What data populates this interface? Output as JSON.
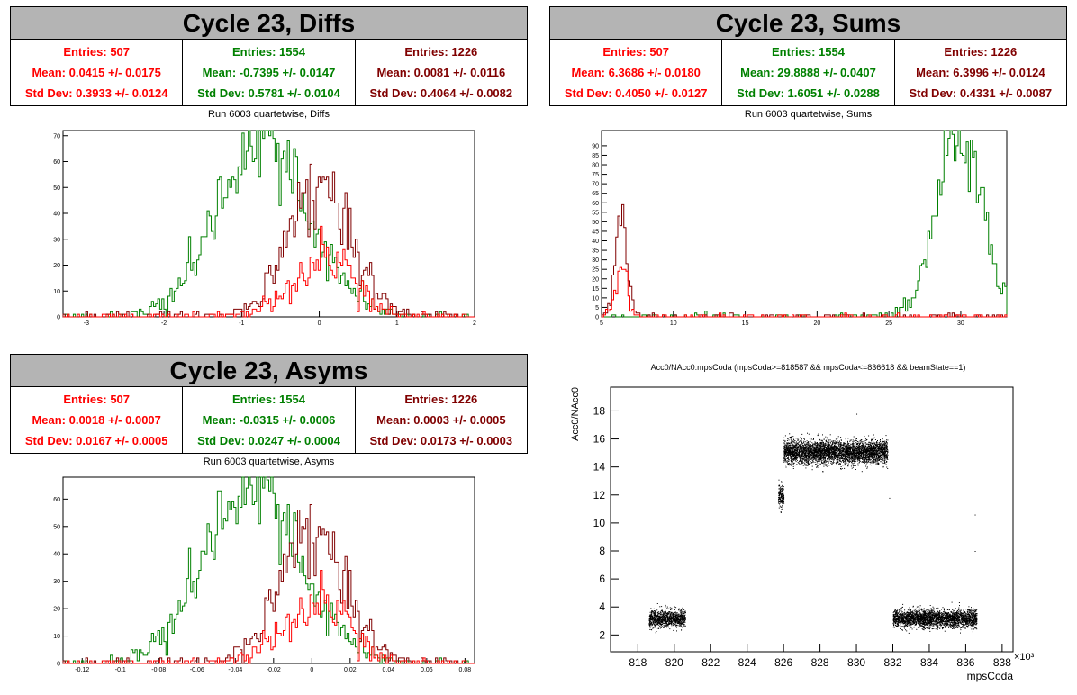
{
  "colors": {
    "c1": "#ff0000",
    "c2": "#008000",
    "c3": "#800000",
    "titlebg": "#b4b4b4"
  },
  "panels": {
    "diffs": {
      "title": "Cycle 23, Diffs",
      "subtitle": "Run 6003 quartetwise, Diffs",
      "stats": [
        {
          "entries": "Entries: 507",
          "mean": "Mean: 0.0415 +/- 0.0175",
          "std": "Std Dev: 0.3933 +/- 0.0124"
        },
        {
          "entries": "Entries: 1554",
          "mean": "Mean: -0.7395 +/- 0.0147",
          "std": "Std Dev: 0.5781 +/- 0.0104"
        },
        {
          "entries": "Entries: 1226",
          "mean": "Mean: 0.0081 +/- 0.0116",
          "std": "Std Dev: 0.4064 +/- 0.0082"
        }
      ]
    },
    "sums": {
      "title": "Cycle 23, Sums",
      "subtitle": "Run 6003 quartetwise, Sums",
      "stats": [
        {
          "entries": "Entries: 507",
          "mean": "Mean: 6.3686 +/- 0.0180",
          "std": "Std Dev: 0.4050 +/- 0.0127"
        },
        {
          "entries": "Entries: 1554",
          "mean": "Mean: 29.8888 +/- 0.0407",
          "std": "Std Dev: 1.6051 +/- 0.0288"
        },
        {
          "entries": "Entries: 1226",
          "mean": "Mean: 6.3996 +/- 0.0124",
          "std": "Std Dev: 0.4331 +/- 0.0087"
        }
      ]
    },
    "asyms": {
      "title": "Cycle 23, Asyms",
      "subtitle": "Run 6003 quartetwise, Asyms",
      "stats": [
        {
          "entries": "Entries: 507",
          "mean": "Mean: 0.0018 +/- 0.0007",
          "std": "Std Dev: 0.0167 +/- 0.0005"
        },
        {
          "entries": "Entries: 1554",
          "mean": "Mean: -0.0315 +/- 0.0006",
          "std": "Std Dev: 0.0247 +/- 0.0004"
        },
        {
          "entries": "Entries: 1226",
          "mean": "Mean: 0.0003 +/- 0.0005",
          "std": "Std Dev: 0.0173 +/- 0.0003"
        }
      ]
    },
    "scatter": {
      "title": "Acc0/NAcc0:mpsCoda (mpsCoda>=818587 && mpsCoda<=836618 && beamState==1)"
    }
  },
  "chart_data": [
    {
      "type": "histogram",
      "name": "diffs",
      "xlim": [
        -3.3,
        2.0
      ],
      "ylim": [
        0,
        72
      ],
      "xticks": [
        -3,
        -2,
        -1,
        0,
        1,
        2
      ],
      "yticks": [
        0,
        10,
        20,
        30,
        40,
        50,
        60,
        70
      ],
      "series": [
        {
          "color": "#008000",
          "mean": -0.7395,
          "std": 0.5781,
          "entries": 1554,
          "peak": 68
        },
        {
          "color": "#800000",
          "mean": 0.0081,
          "std": 0.4064,
          "entries": 1226,
          "peak": 50
        },
        {
          "color": "#ff0000",
          "mean": 0.0415,
          "std": 0.3933,
          "entries": 507,
          "peak": 22
        }
      ]
    },
    {
      "type": "histogram",
      "name": "sums",
      "xlim": [
        5,
        33.2
      ],
      "ylim": [
        0,
        98
      ],
      "xticks": [
        5,
        10,
        15,
        20,
        25,
        30
      ],
      "yticks": [
        0,
        5,
        10,
        15,
        20,
        25,
        30,
        35,
        40,
        45,
        50,
        55,
        60,
        65,
        70,
        75,
        80,
        85,
        90
      ],
      "series": [
        {
          "color": "#008000",
          "mean": 29.8888,
          "std": 1.6051,
          "entries": 1554,
          "peak": 95
        },
        {
          "color": "#800000",
          "mean": 6.3996,
          "std": 0.4331,
          "entries": 1226,
          "peak": 49
        },
        {
          "color": "#ff0000",
          "mean": 6.3686,
          "std": 0.405,
          "entries": 507,
          "peak": 22
        }
      ]
    },
    {
      "type": "histogram",
      "name": "asyms",
      "xlim": [
        -0.13,
        0.085
      ],
      "ylim": [
        0,
        68
      ],
      "xticks": [
        -0.12,
        -0.1,
        -0.08,
        -0.06,
        -0.04,
        -0.02,
        0,
        0.02,
        0.04,
        0.06,
        0.08
      ],
      "yticks": [
        0,
        10,
        20,
        30,
        40,
        50,
        60
      ],
      "series": [
        {
          "color": "#008000",
          "mean": -0.0315,
          "std": 0.0247,
          "entries": 1554,
          "peak": 65
        },
        {
          "color": "#800000",
          "mean": 0.0003,
          "std": 0.0173,
          "entries": 1226,
          "peak": 47
        },
        {
          "color": "#ff0000",
          "mean": 0.0018,
          "std": 0.0167,
          "entries": 507,
          "peak": 22
        }
      ]
    },
    {
      "type": "scatter",
      "name": "acc0-vs-mpscoda",
      "xlabel": "mpsCoda",
      "ylabel": "Acc0/NAcc0",
      "xexponent": "×10³",
      "xlim": [
        816.5,
        838.6
      ],
      "ylim": [
        0.8,
        19.7
      ],
      "xticks": [
        818,
        820,
        822,
        824,
        826,
        828,
        830,
        832,
        834,
        836,
        838
      ],
      "yticks": [
        2,
        4,
        6,
        8,
        10,
        12,
        14,
        16,
        18
      ],
      "clusters": [
        {
          "x": [
            818.6,
            820.6
          ],
          "y_mean": 3.2,
          "y_spread": 0.45,
          "count": 1100
        },
        {
          "x": [
            825.7,
            826.0
          ],
          "y_mean": 12.0,
          "y_spread": 0.6,
          "count": 180
        },
        {
          "x": [
            826.0,
            831.7
          ],
          "y_mean": 15.1,
          "y_spread": 0.6,
          "count": 4200
        },
        {
          "x": [
            832.0,
            836.6
          ],
          "y_mean": 3.2,
          "y_spread": 0.45,
          "count": 2800
        }
      ]
    }
  ]
}
